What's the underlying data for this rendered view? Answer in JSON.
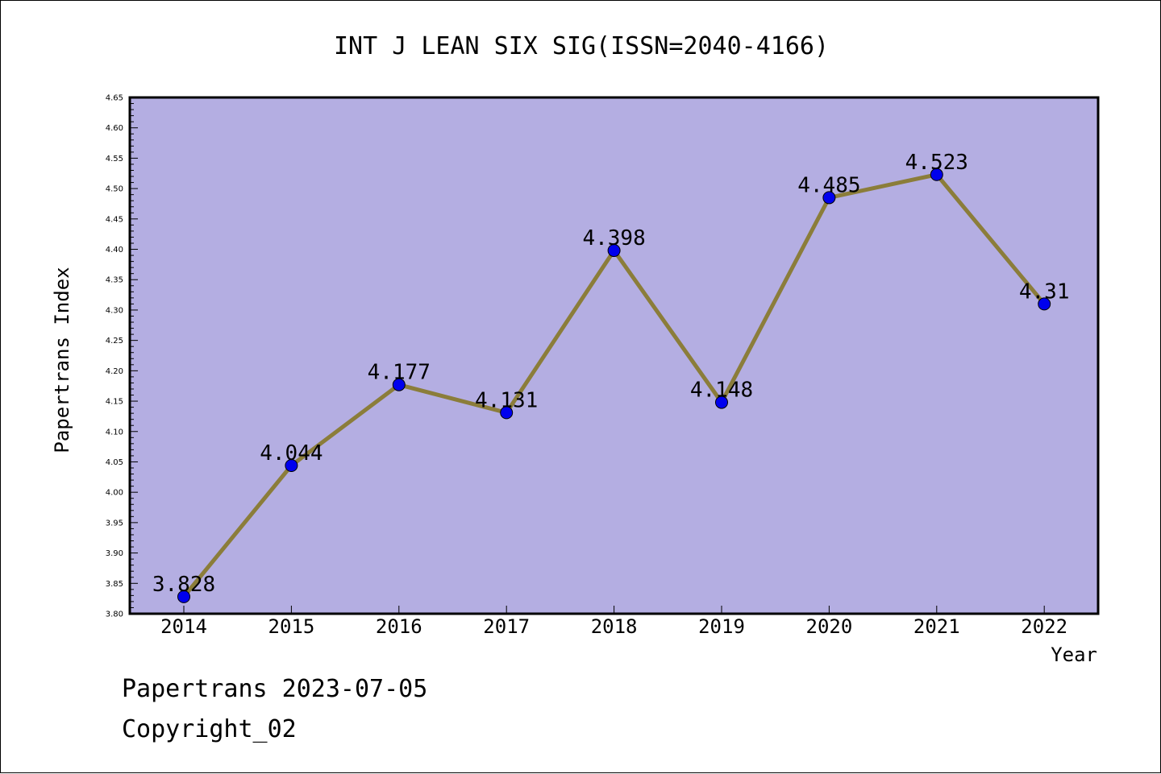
{
  "chart_data": {
    "type": "line",
    "title": "INT J LEAN SIX SIG(ISSN=2040-4166)",
    "xlabel": "Year",
    "ylabel": "Papertrans Index",
    "categories": [
      "2014",
      "2015",
      "2016",
      "2017",
      "2018",
      "2019",
      "2020",
      "2021",
      "2022"
    ],
    "series": [
      {
        "values": [
          3.828,
          4.044,
          4.177,
          4.131,
          4.398,
          4.148,
          4.485,
          4.523,
          4.31
        ],
        "labels": [
          "3.828",
          "4.044",
          "4.177",
          "4.131",
          "4.398",
          "4.148",
          "4.485",
          "4.523",
          "4.31"
        ]
      }
    ],
    "ylim": [
      3.8,
      4.65
    ],
    "yticks": [
      "3.80",
      "3.85",
      "3.90",
      "3.95",
      "4.00",
      "4.05",
      "4.10",
      "4.15",
      "4.20",
      "4.25",
      "4.30",
      "4.35",
      "4.40",
      "4.45",
      "4.50",
      "4.55",
      "4.60",
      "4.65"
    ],
    "grid": false,
    "colors": {
      "plot_background": "#b4aee2",
      "line": "#8b7d3a",
      "marker": "#0000ee"
    }
  },
  "footer": {
    "line1": "Papertrans 2023-07-05",
    "line2": "Copyright_02"
  }
}
